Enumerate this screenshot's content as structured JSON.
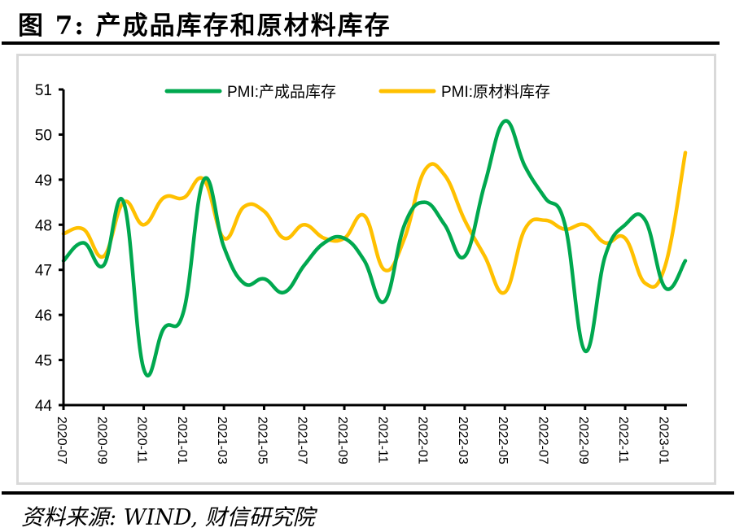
{
  "header": {
    "title": "图 7:  产成品库存和原材料库存"
  },
  "footer": {
    "source": "资料来源:  WIND,  财信研究院"
  },
  "colors": {
    "finished_goods": "#00a84f",
    "raw_materials": "#ffc000",
    "axis": "#000000",
    "frame": "#d9d9d9"
  },
  "chart_data": {
    "type": "line",
    "title": "产成品库存和原材料库存",
    "xlabel": "",
    "ylabel": "",
    "ylim": [
      44,
      51
    ],
    "yticks": [
      "44",
      "45",
      "46",
      "47",
      "48",
      "49",
      "50",
      "51"
    ],
    "grid": false,
    "legend_position": "top",
    "x": [
      "2020-07",
      "2020-08",
      "2020-09",
      "2020-10",
      "2020-11",
      "2020-12",
      "2021-01",
      "2021-02",
      "2021-03",
      "2021-04",
      "2021-05",
      "2021-06",
      "2021-07",
      "2021-08",
      "2021-09",
      "2021-10",
      "2021-11",
      "2021-12",
      "2022-01",
      "2022-02",
      "2022-03",
      "2022-04",
      "2022-05",
      "2022-06",
      "2022-07",
      "2022-08",
      "2022-09",
      "2022-10",
      "2022-11",
      "2022-12",
      "2023-01",
      "2023-02"
    ],
    "xtick_labels": [
      "2020-07",
      "2020-09",
      "2020-11",
      "2021-01",
      "2021-03",
      "2021-05",
      "2021-07",
      "2021-09",
      "2021-11",
      "2022-01",
      "2022-03",
      "2022-05",
      "2022-07",
      "2022-09",
      "2022-11",
      "2023-01"
    ],
    "series": [
      {
        "name": "PMI:产成品库存",
        "color": "#00a84f",
        "values": [
          47.2,
          47.6,
          47.1,
          48.5,
          44.8,
          45.7,
          46.1,
          49.0,
          47.5,
          46.7,
          46.8,
          46.5,
          47.1,
          47.6,
          47.7,
          47.2,
          46.3,
          48.0,
          48.5,
          48.0,
          47.3,
          48.9,
          50.3,
          49.3,
          48.6,
          48.0,
          45.2,
          47.3,
          48.0,
          48.1,
          46.6,
          47.2
        ]
      },
      {
        "name": "PMI:原材料库存",
        "color": "#ffc000",
        "values": [
          47.8,
          47.9,
          47.3,
          48.5,
          48.0,
          48.6,
          48.6,
          49.0,
          47.7,
          48.4,
          48.3,
          47.7,
          48.0,
          47.7,
          47.7,
          48.2,
          47.0,
          47.7,
          49.2,
          49.1,
          48.1,
          47.3,
          46.5,
          47.9,
          48.1,
          47.9,
          48.0,
          47.6,
          47.7,
          46.7,
          47.1,
          49.6
        ]
      }
    ]
  }
}
